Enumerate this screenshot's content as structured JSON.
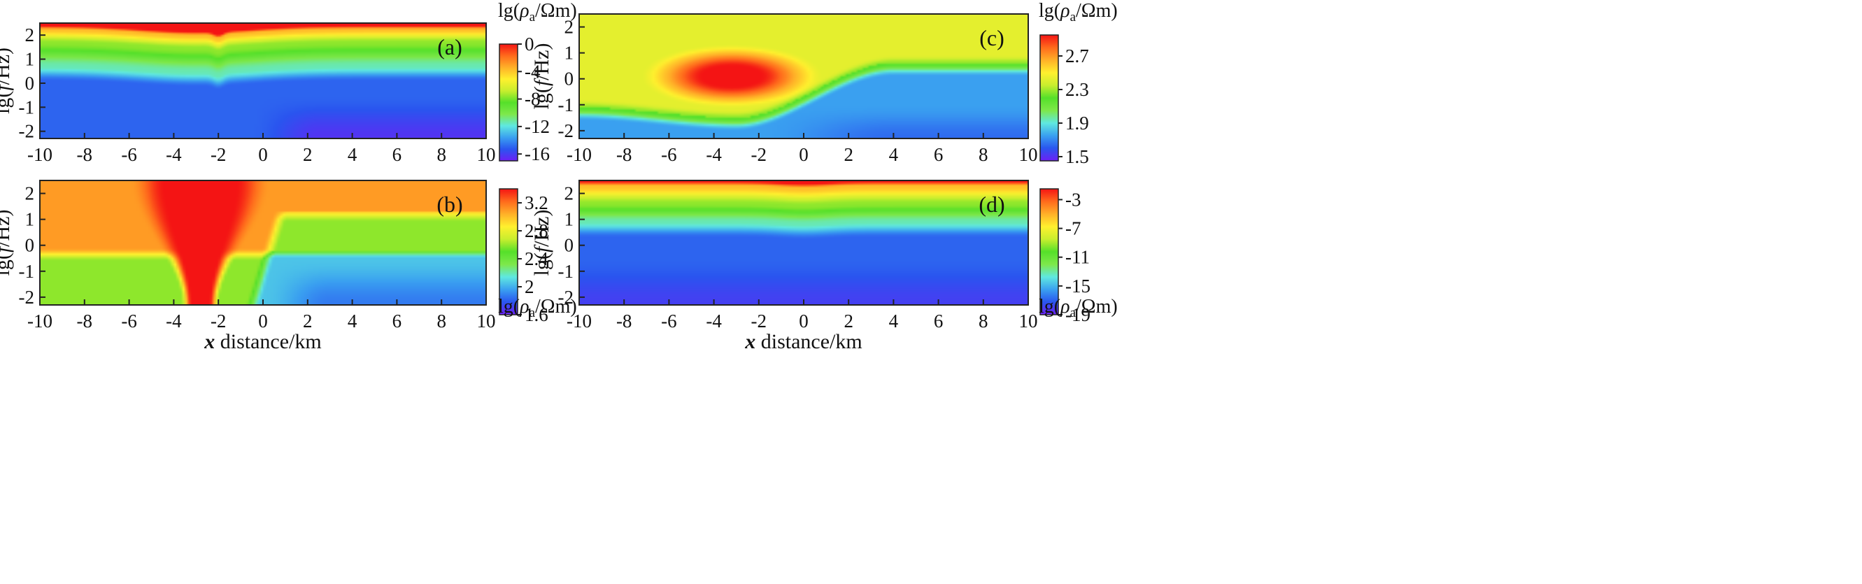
{
  "figure": {
    "xlabel_italic": "x",
    "xlabel_rest": " distance/km"
  },
  "colormap": [
    "#6d1ff5",
    "#2a55ef",
    "#3aa0f0",
    "#5fe8e0",
    "#7ee84a",
    "#55e02a",
    "#c8ee2e",
    "#fff02e",
    "#ffb028",
    "#ff6a1c",
    "#f41414"
  ],
  "chart_data": [
    {
      "type": "heatmap",
      "panel": "(a)",
      "x_range": [
        -10,
        10
      ],
      "y_range": [
        -2.3,
        2.5
      ],
      "ylabel": "lg(f/Hz)",
      "xticks": [
        "-10",
        "-8",
        "-6",
        "-4",
        "-2",
        "0",
        "2",
        "4",
        "6",
        "8",
        "10"
      ],
      "yticks": [
        "2",
        "1",
        "0",
        "-1",
        "-2"
      ],
      "show_xlabel": false,
      "colorbar": {
        "label_prefix": "lg(",
        "label_rho": "ρ",
        "label_sub": "a",
        "label_suffix": "/Ωm)",
        "ticks": [
          "0",
          "-4",
          "-8",
          "-12",
          "-16"
        ],
        "range": [
          0,
          -17
        ],
        "colormap_reversed": false
      },
      "profile_left": [
        2.4,
        2.25,
        1.7,
        0.7
      ],
      "profile_right": [
        2.4,
        2.25,
        1.7,
        0.7
      ],
      "anomaly": {
        "center_x": -3,
        "depth_shift": -0.25,
        "width": 3.5
      }
    },
    {
      "type": "heatmap",
      "panel": "(b)",
      "x_range": [
        -10,
        10
      ],
      "y_range": [
        -2.3,
        2.5
      ],
      "ylabel": "lg(f/Hz)",
      "xticks": [
        "-10",
        "-8",
        "-6",
        "-4",
        "-2",
        "0",
        "2",
        "4",
        "6",
        "8",
        "10"
      ],
      "yticks": [
        "2",
        "1",
        "0",
        "-1",
        "-2"
      ],
      "show_xlabel": true,
      "colorbar": {
        "label_prefix": "lg(",
        "label_rho": "ρ",
        "label_sub": "a",
        "label_suffix": "/Ωm)",
        "ticks": [
          "3.2",
          "2.8",
          "2.4",
          "2",
          "1.6"
        ],
        "range": [
          3.4,
          1.6
        ],
        "colormap_reversed": false
      },
      "left_block": {
        "x_to": -4,
        "transition_y": -0.1
      },
      "conductor": {
        "center_x": -2.8,
        "width_bottom": 1.2,
        "width_top": 4.5
      },
      "right_block": {
        "x_from": -0.5,
        "upper_edge_y": 1.3,
        "lower_edge_y": -0.2
      }
    },
    {
      "type": "heatmap",
      "panel": "(c)",
      "x_range": [
        -10,
        10
      ],
      "y_range": [
        -2.3,
        2.5
      ],
      "ylabel": "lg(f/Hz)",
      "xticks": [
        "-10",
        "-8",
        "-6",
        "-4",
        "-2",
        "0",
        "2",
        "4",
        "6",
        "8",
        "10"
      ],
      "yticks": [
        "2",
        "1",
        "0",
        "-1",
        "-2"
      ],
      "show_xlabel": false,
      "colorbar": {
        "label_prefix": "lg(",
        "label_rho": "ρ",
        "label_sub": "a",
        "label_suffix": "/Ωm)",
        "ticks": [
          "2.7",
          "2.3",
          "1.9",
          "1.5"
        ],
        "range": [
          2.95,
          1.45
        ],
        "colormap_reversed": false
      },
      "lens": {
        "center_x": -3.2,
        "center_y": 0.1,
        "half_width": 2.3,
        "half_height": 0.7
      },
      "basement": {
        "left_y": -1.1,
        "trough_x": -3,
        "trough_y": -1.5,
        "right_y": 0.6,
        "rise_x": 4
      }
    },
    {
      "type": "heatmap",
      "panel": "(d)",
      "x_range": [
        -10,
        10
      ],
      "y_range": [
        -2.3,
        2.5
      ],
      "ylabel": "lg(f/Hz)",
      "xticks": [
        "-10",
        "-8",
        "-6",
        "-4",
        "-2",
        "0",
        "2",
        "4",
        "6",
        "8",
        "10"
      ],
      "yticks": [
        "2",
        "1",
        "0",
        "-1",
        "-2"
      ],
      "show_xlabel": true,
      "colorbar": {
        "label_prefix": "lg(",
        "label_rho": "ρ",
        "label_sub": "a",
        "label_suffix": "/Ωm)",
        "ticks": [
          "-3",
          "-7",
          "-11",
          "-15",
          "-19"
        ],
        "range": [
          -1.5,
          -19
        ],
        "colormap_reversed": false
      },
      "profile_left": [
        2.45,
        2.3,
        1.6,
        0.9
      ],
      "profile_right": [
        2.45,
        2.3,
        1.6,
        0.9
      ]
    }
  ]
}
